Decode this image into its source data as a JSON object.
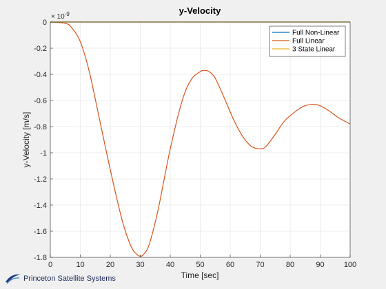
{
  "chart_data": {
    "type": "line",
    "title": "y-Velocity",
    "xlabel": "Time [sec]",
    "ylabel": "y-Velocity [m/s]",
    "exponent_label": "× 10",
    "exponent_power": "-9",
    "xlim": [
      0,
      100
    ],
    "ylim": [
      -1.8,
      0
    ],
    "x_ticks": [
      0,
      10,
      20,
      30,
      40,
      50,
      60,
      70,
      80,
      90,
      100
    ],
    "x_tick_labels": [
      "0",
      "10",
      "20",
      "30",
      "40",
      "50",
      "60",
      "70",
      "80",
      "90",
      "100"
    ],
    "y_ticks": [
      0,
      -0.2,
      -0.4,
      -0.6,
      -0.8,
      -1,
      -1.2,
      -1.4,
      -1.6,
      -1.8
    ],
    "y_tick_labels": [
      "0",
      "-0.2",
      "-0.4",
      "-0.6",
      "-0.8",
      "-1",
      "-1.2",
      "-1.4",
      "-1.6",
      "-1.8"
    ],
    "grid": true,
    "legend_position": "top-right",
    "series": [
      {
        "name": "Full Non-Linear",
        "color": "#0072bd",
        "x": [
          0,
          100
        ],
        "y": [
          0,
          0
        ]
      },
      {
        "name": "Full Linear",
        "color": "#d95319",
        "x": [
          0,
          5,
          7,
          10,
          13,
          16,
          20,
          24,
          27,
          29,
          30,
          31,
          33,
          36,
          40,
          44,
          47,
          50,
          51.5,
          53,
          55,
          58,
          61,
          64,
          67,
          70,
          72,
          75,
          78,
          82,
          85,
          88,
          90,
          93,
          96,
          100
        ],
        "y": [
          0,
          -0.01,
          -0.04,
          -0.15,
          -0.38,
          -0.7,
          -1.13,
          -1.52,
          -1.72,
          -1.78,
          -1.79,
          -1.78,
          -1.7,
          -1.43,
          -0.97,
          -0.6,
          -0.44,
          -0.38,
          -0.37,
          -0.38,
          -0.43,
          -0.58,
          -0.74,
          -0.87,
          -0.95,
          -0.97,
          -0.95,
          -0.86,
          -0.76,
          -0.68,
          -0.64,
          -0.63,
          -0.64,
          -0.68,
          -0.73,
          -0.78
        ]
      },
      {
        "name": "3 State Linear",
        "color": "#edb120",
        "x": [
          0,
          100
        ],
        "y": [
          0,
          0
        ]
      }
    ]
  },
  "watermark": {
    "text": "Princeton Satellite Systems",
    "icon": "satellite-logo-icon"
  }
}
